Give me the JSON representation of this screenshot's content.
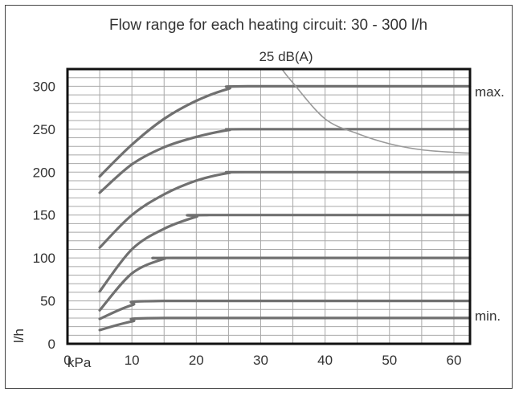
{
  "chart_data": {
    "type": "line",
    "title": "Flow range for each heating circuit: 30 - 300 l/h",
    "xlabel": "kPa",
    "ylabel": "l/h",
    "xlim": [
      0,
      62.5
    ],
    "ylim": [
      0,
      320
    ],
    "x_ticks": [
      0,
      10,
      20,
      30,
      40,
      50,
      60
    ],
    "y_ticks": [
      0,
      50,
      100,
      150,
      200,
      250,
      300
    ],
    "grid": true,
    "annotations": {
      "max_label": "max.",
      "min_label": "min.",
      "noise_label": "25 dB(A)"
    },
    "series": [
      {
        "values": [
          [
            5,
            195
          ],
          [
            10,
            232
          ],
          [
            15,
            262
          ],
          [
            20,
            283
          ],
          [
            25,
            297
          ],
          [
            28,
            300
          ],
          [
            62.5,
            300
          ]
        ]
      },
      {
        "values": [
          [
            5,
            176
          ],
          [
            10,
            209
          ],
          [
            15,
            229
          ],
          [
            20,
            241
          ],
          [
            25,
            249
          ],
          [
            28,
            250
          ],
          [
            62.5,
            250
          ]
        ]
      },
      {
        "values": [
          [
            5,
            112
          ],
          [
            10,
            150
          ],
          [
            15,
            174
          ],
          [
            20,
            190
          ],
          [
            25,
            199
          ],
          [
            28,
            200
          ],
          [
            62.5,
            200
          ]
        ]
      },
      {
        "values": [
          [
            5,
            61
          ],
          [
            10,
            110
          ],
          [
            15,
            134
          ],
          [
            20,
            148
          ],
          [
            22,
            150
          ],
          [
            62.5,
            150
          ]
        ]
      },
      {
        "values": [
          [
            5,
            39
          ],
          [
            10,
            82
          ],
          [
            15,
            99
          ],
          [
            17,
            100
          ],
          [
            62.5,
            100
          ]
        ]
      },
      {
        "values": [
          [
            5,
            29
          ],
          [
            10,
            45
          ],
          [
            15,
            50
          ],
          [
            62.5,
            50
          ]
        ]
      },
      {
        "values": [
          [
            5,
            16
          ],
          [
            10,
            26
          ],
          [
            15,
            30
          ],
          [
            62.5,
            30
          ]
        ]
      },
      {
        "values": [
          [
            33.3,
            320
          ],
          [
            35,
            304
          ],
          [
            40,
            262
          ],
          [
            45,
            245
          ],
          [
            50,
            233
          ],
          [
            55,
            226
          ],
          [
            60,
            223
          ],
          [
            62.5,
            222
          ]
        ]
      }
    ]
  }
}
